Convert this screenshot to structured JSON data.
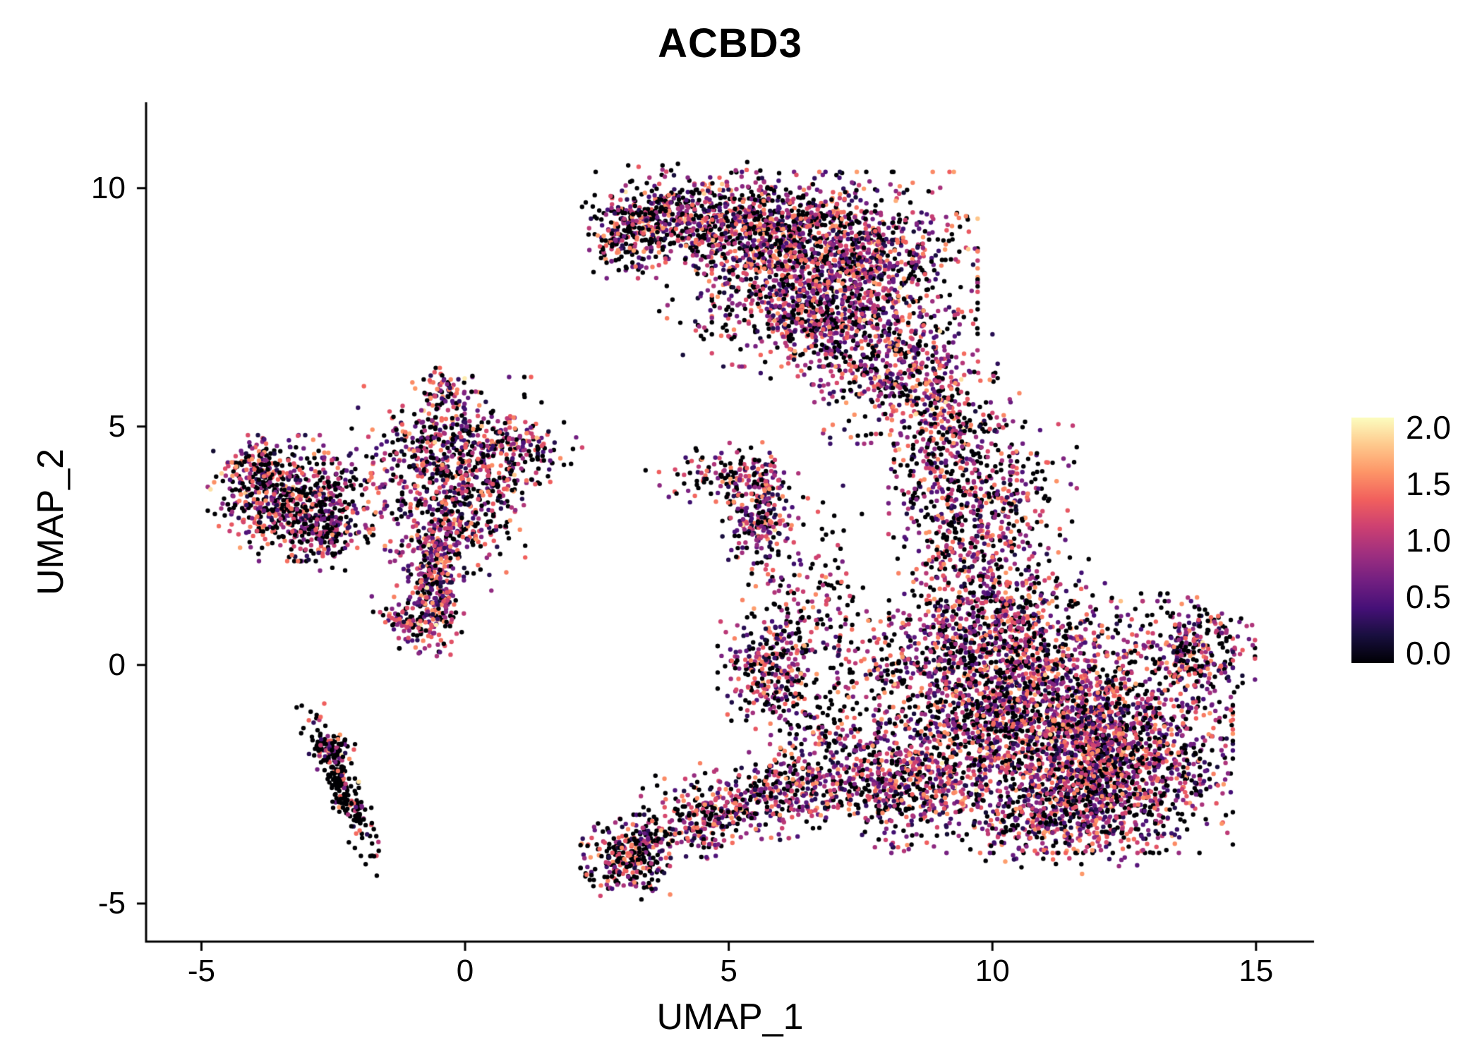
{
  "chart_data": {
    "type": "scatter",
    "title": "ACBD3",
    "xlabel": "UMAP_1",
    "ylabel": "UMAP_2",
    "xlim": [
      -6.05,
      16.1
    ],
    "ylim": [
      -5.8,
      11.8
    ],
    "grid": false,
    "x_ticks": [
      {
        "v": -5,
        "label": "-5"
      },
      {
        "v": 0,
        "label": "0"
      },
      {
        "v": 5,
        "label": "5"
      },
      {
        "v": 10,
        "label": "10"
      },
      {
        "v": 15,
        "label": "15"
      }
    ],
    "y_ticks": [
      {
        "v": 10,
        "label": "10"
      },
      {
        "v": 5,
        "label": "5"
      },
      {
        "v": 0,
        "label": "0"
      },
      {
        "v": -5,
        "label": "-5"
      }
    ],
    "legend": {
      "type": "colorbar",
      "position": "right",
      "min": 0.0,
      "max": 2.0,
      "ticks": [
        {
          "v": 2.0,
          "label": "2.0"
        },
        {
          "v": 1.5,
          "label": "1.5"
        },
        {
          "v": 1.0,
          "label": "1.0"
        },
        {
          "v": 0.5,
          "label": "0.5"
        },
        {
          "v": 0.0,
          "label": "0.0"
        }
      ],
      "colormap": "magma",
      "colormap_stops": [
        "#000004",
        "#180F3E",
        "#451077",
        "#721F81",
        "#9F2F7F",
        "#CD4071",
        "#F1605D",
        "#FD9567",
        "#FEC98D",
        "#FCFDBF"
      ]
    },
    "point_count_approx": 13500,
    "clusters": [
      {
        "x": 4.0,
        "y": 9.35,
        "sx": 0.75,
        "sy": 0.45,
        "n": 450,
        "rot": -8,
        "p0": 0.42
      },
      {
        "x": 3.0,
        "y": 8.95,
        "sx": 0.3,
        "sy": 0.35,
        "n": 160,
        "p0": 0.5
      },
      {
        "x": 5.6,
        "y": 9.2,
        "sx": 0.8,
        "sy": 0.55,
        "n": 550,
        "rot": -5,
        "p0": 0.3
      },
      {
        "x": 7.2,
        "y": 8.3,
        "sx": 1.05,
        "sy": 0.85,
        "n": 1300,
        "p0": 0.3
      },
      {
        "x": 6.6,
        "y": 7.2,
        "sx": 0.6,
        "sy": 0.55,
        "n": 250,
        "p0": 0.32
      },
      {
        "x": 5.0,
        "y": 7.8,
        "sx": 0.7,
        "sy": 0.7,
        "n": 120,
        "p0": 0.4
      },
      {
        "x": 8.1,
        "y": 6.2,
        "sx": 0.8,
        "sy": 0.65,
        "n": 450,
        "p0": 0.3
      },
      {
        "x": 8.9,
        "y": 4.8,
        "sx": 0.5,
        "sy": 0.75,
        "n": 280,
        "p0": 0.35
      },
      {
        "x": 9.35,
        "y": 3.1,
        "sx": 0.55,
        "sy": 0.75,
        "n": 260,
        "p0": 0.35
      },
      {
        "x": 9.9,
        "y": 4.8,
        "sx": 0.45,
        "sy": 0.6,
        "n": 70,
        "p0": 0.45
      },
      {
        "x": 11.2,
        "y": -1.3,
        "sx": 1.4,
        "sy": 1.1,
        "n": 2600,
        "p0": 0.3
      },
      {
        "x": 12.6,
        "y": -2.2,
        "sx": 0.8,
        "sy": 0.7,
        "n": 500,
        "p0": 0.28
      },
      {
        "x": 11.3,
        "y": -3.3,
        "sx": 0.9,
        "sy": 0.45,
        "n": 300,
        "p0": 0.3
      },
      {
        "x": 13.9,
        "y": 0.3,
        "sx": 0.45,
        "sy": 0.5,
        "n": 260,
        "p0": 0.3
      },
      {
        "x": 10.2,
        "y": 0.9,
        "sx": 0.9,
        "sy": 0.55,
        "n": 400,
        "p0": 0.32
      },
      {
        "x": 9.2,
        "y": -0.2,
        "sx": 0.6,
        "sy": 0.8,
        "n": 350,
        "p0": 0.35
      },
      {
        "x": 9.9,
        "y": 2.2,
        "sx": 0.7,
        "sy": 0.9,
        "n": 280,
        "p0": 0.38
      },
      {
        "x": 10.4,
        "y": 3.9,
        "sx": 0.5,
        "sy": 0.5,
        "n": 90,
        "p0": 0.4
      },
      {
        "x": 8.3,
        "y": -2.5,
        "sx": 0.75,
        "sy": 0.55,
        "n": 420,
        "p0": 0.33
      },
      {
        "x": 5.75,
        "y": -0.15,
        "sx": 0.4,
        "sy": 0.55,
        "n": 260,
        "p0": 0.3
      },
      {
        "x": 6.1,
        "y": 1.0,
        "sx": 0.35,
        "sy": 0.6,
        "n": 90,
        "p0": 0.45
      },
      {
        "x": 6.9,
        "y": 1.6,
        "sx": 0.35,
        "sy": 0.9,
        "n": 80,
        "p0": 0.55
      },
      {
        "x": 7.6,
        "y": 0.0,
        "sx": 0.5,
        "sy": 0.6,
        "n": 90,
        "p0": 0.5
      },
      {
        "x": 5.9,
        "y": -2.7,
        "sx": 1.05,
        "sy": 0.4,
        "n": 480,
        "rot": 12,
        "p0": 0.32
      },
      {
        "x": 6.9,
        "y": -1.5,
        "sx": 0.6,
        "sy": 0.6,
        "n": 180,
        "p0": 0.4
      },
      {
        "x": 3.15,
        "y": -4.05,
        "sx": 0.4,
        "sy": 0.38,
        "n": 300,
        "p0": 0.45
      },
      {
        "x": 4.3,
        "y": -3.4,
        "sx": 0.55,
        "sy": 0.3,
        "n": 170,
        "rot": 20,
        "p0": 0.35
      },
      {
        "x": 5.35,
        "y": 3.95,
        "sx": 0.4,
        "sy": 0.3,
        "n": 130,
        "p0": 0.38
      },
      {
        "x": 5.6,
        "y": 3.05,
        "sx": 0.3,
        "sy": 0.5,
        "n": 200,
        "p0": 0.25
      },
      {
        "x": 4.4,
        "y": 3.9,
        "sx": 0.45,
        "sy": 0.35,
        "n": 40,
        "p0": 0.45
      },
      {
        "x": -0.35,
        "y": 4.6,
        "sx": 0.75,
        "sy": 0.6,
        "n": 420,
        "p0": 0.35
      },
      {
        "x": -0.3,
        "y": 3.0,
        "sx": 0.6,
        "sy": 0.6,
        "n": 330,
        "p0": 0.3
      },
      {
        "x": -0.55,
        "y": 1.7,
        "sx": 0.22,
        "sy": 0.65,
        "n": 280,
        "p0": 0.2
      },
      {
        "x": -1.05,
        "y": 0.95,
        "sx": 0.3,
        "sy": 0.25,
        "n": 110,
        "p0": 0.3
      },
      {
        "x": 0.9,
        "y": 4.45,
        "sx": 0.55,
        "sy": 0.35,
        "n": 160,
        "p0": 0.35
      },
      {
        "x": -0.4,
        "y": 5.75,
        "sx": 0.25,
        "sy": 0.2,
        "n": 60,
        "p0": 0.3
      },
      {
        "x": 0.3,
        "y": 3.8,
        "sx": 0.5,
        "sy": 0.5,
        "n": 120,
        "p0": 0.35
      },
      {
        "x": -3.2,
        "y": 3.5,
        "sx": 0.7,
        "sy": 0.55,
        "n": 650,
        "p0": 0.42
      },
      {
        "x": -3.9,
        "y": 4.1,
        "sx": 0.3,
        "sy": 0.3,
        "n": 120,
        "p0": 0.4
      },
      {
        "x": -2.6,
        "y": 2.7,
        "sx": 0.35,
        "sy": 0.3,
        "n": 120,
        "p0": 0.45
      },
      {
        "x": -2.3,
        "y": -2.6,
        "sx": 0.14,
        "sy": 0.8,
        "n": 230,
        "rot": 22,
        "p0": 0.8
      },
      {
        "x": -2.45,
        "y": -1.75,
        "sx": 0.18,
        "sy": 0.12,
        "n": 50,
        "p0": 0.5
      }
    ]
  }
}
